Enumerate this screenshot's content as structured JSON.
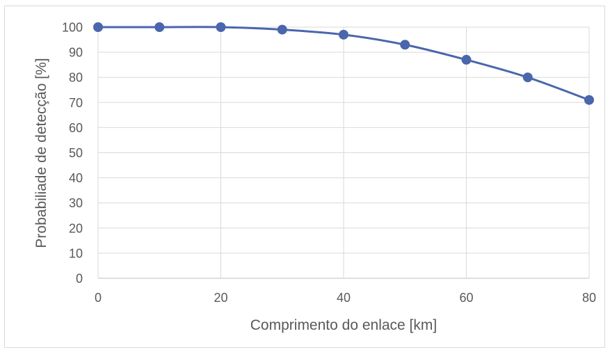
{
  "chart_data": {
    "type": "line",
    "title": "",
    "xlabel": "Comprimento do enlace [km]",
    "ylabel": "Probabiliade de detecção [%]",
    "x": [
      0,
      10,
      20,
      30,
      40,
      50,
      60,
      70,
      80
    ],
    "series": [
      {
        "values": [
          100,
          100,
          100,
          99,
          97,
          93,
          87,
          80,
          71
        ]
      }
    ],
    "xlim": [
      0,
      80
    ],
    "ylim": [
      0,
      100
    ],
    "xticks": [
      "0",
      "20",
      "40",
      "60",
      "80"
    ],
    "yticks": [
      "0",
      "10",
      "20",
      "30",
      "40",
      "50",
      "60",
      "70",
      "80",
      "90",
      "100"
    ],
    "grid": true,
    "legend": "none",
    "colors": {
      "series": "#4a66ac",
      "grid": "#d9d9d9",
      "text": "#595959"
    }
  }
}
